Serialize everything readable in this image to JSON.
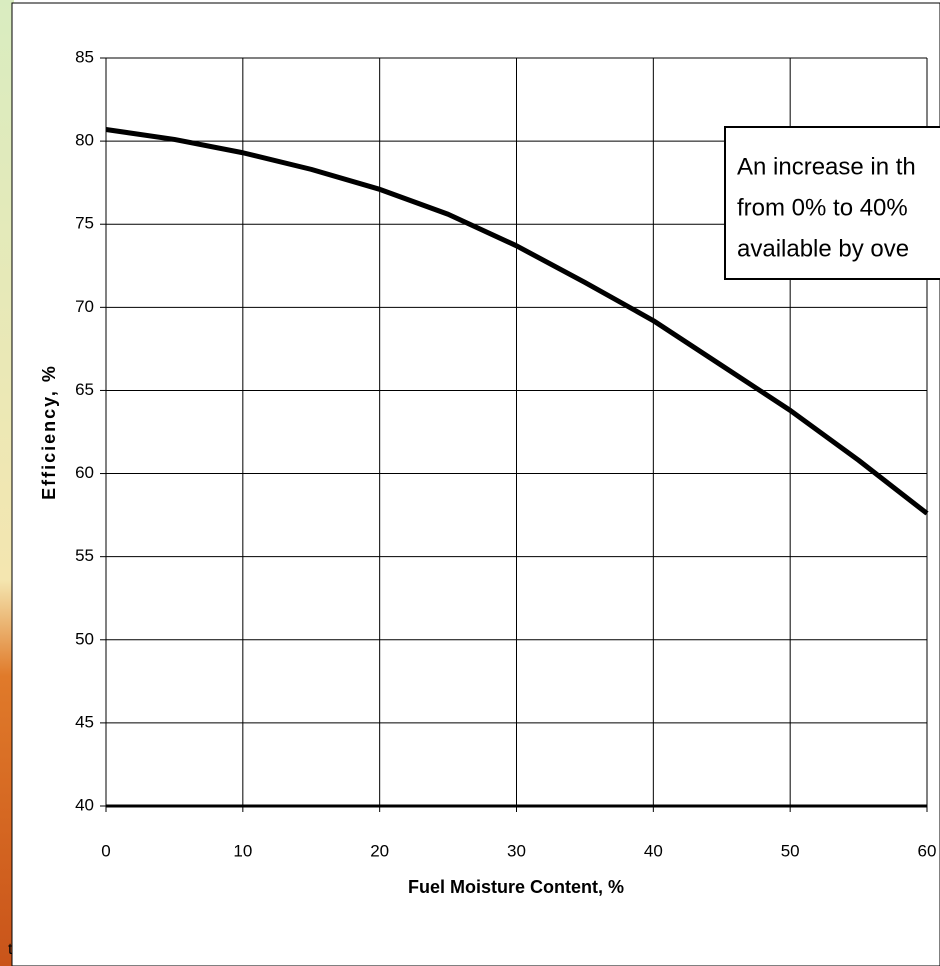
{
  "chart_data": {
    "type": "line",
    "xlabel": "Fuel Moisture Content, %",
    "ylabel": "Efficiency, %",
    "x": [
      0,
      5,
      10,
      15,
      20,
      25,
      30,
      35,
      40,
      45,
      50,
      55,
      60
    ],
    "series": [
      {
        "color": "#000000",
        "values": [
          80.7,
          80.1,
          79.3,
          78.3,
          77.1,
          75.6,
          73.7,
          71.5,
          69.2,
          66.5,
          63.8,
          60.8,
          57.6
        ]
      }
    ],
    "xlim": [
      0,
      60
    ],
    "xticks": [
      0,
      10,
      20,
      30,
      40,
      50,
      60
    ],
    "ylim": [
      40,
      85
    ],
    "yticks": [
      40,
      45,
      50,
      55,
      60,
      65,
      70,
      75,
      80,
      85
    ],
    "grid": true,
    "annotation": [
      "An increase in th",
      "from 0% to 40%",
      "available by ove"
    ],
    "side_text": "t"
  }
}
